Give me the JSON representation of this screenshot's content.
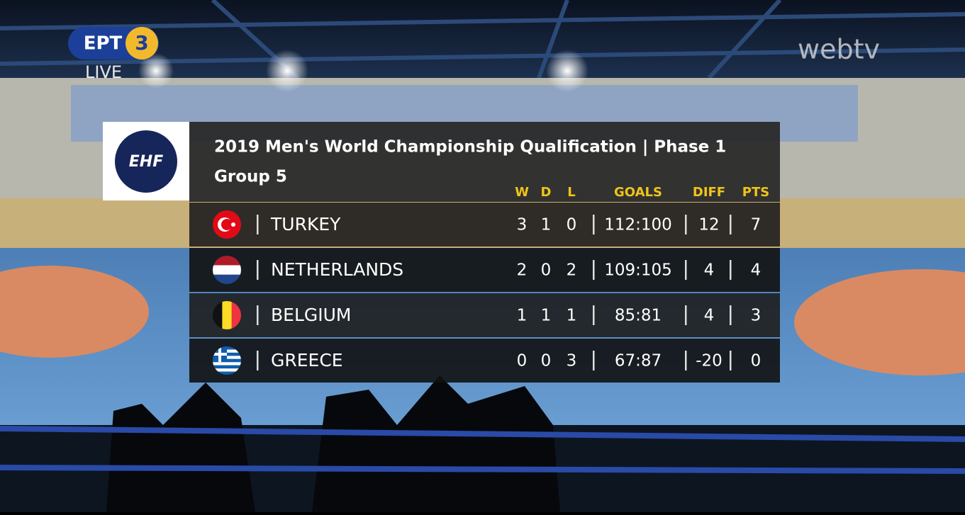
{
  "broadcaster": {
    "logo": "ΕΡΤ",
    "channel": "3",
    "status": "LIVE",
    "watermark": "webtv"
  },
  "scoreboard": {
    "logo": "EHF",
    "title": "2019 Men's World Championship Qualification | Phase 1",
    "subtitle": "Group 5",
    "columns": [
      "W",
      "D",
      "L",
      "GOALS",
      "DIFF",
      "PTS"
    ],
    "rows": [
      {
        "team": "TURKEY",
        "w": 3,
        "d": 1,
        "l": 0,
        "goals": "112:100",
        "diff": 12,
        "pts": 7
      },
      {
        "team": "NETHERLANDS",
        "w": 2,
        "d": 0,
        "l": 2,
        "goals": "109:105",
        "diff": 4,
        "pts": 4
      },
      {
        "team": "BELGIUM",
        "w": 1,
        "d": 1,
        "l": 1,
        "goals": "85:81",
        "diff": 4,
        "pts": 3
      },
      {
        "team": "GREECE",
        "w": 0,
        "d": 0,
        "l": 3,
        "goals": "67:87",
        "diff": -20,
        "pts": 0
      }
    ]
  }
}
